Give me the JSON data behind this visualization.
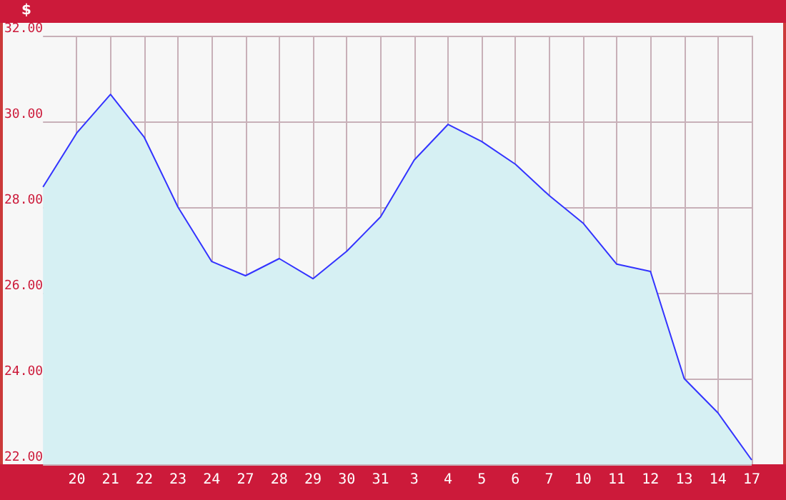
{
  "chart_data": {
    "type": "area",
    "ylabel": "$",
    "categories": [
      null,
      "20",
      "21",
      "22",
      "23",
      "24",
      "27",
      "28",
      "29",
      "30",
      "31",
      "3",
      "4",
      "5",
      "6",
      "7",
      "10",
      "11",
      "12",
      "13",
      "14",
      "17"
    ],
    "series": [
      {
        "color": "#3333ff",
        "values": [
          28.47,
          29.73,
          30.63,
          29.63,
          28.0,
          26.73,
          26.4,
          26.8,
          26.33,
          26.97,
          27.77,
          29.1,
          29.93,
          29.53,
          29.0,
          28.27,
          27.63,
          26.67,
          26.5,
          24.0,
          23.2,
          22.1
        ]
      }
    ],
    "ylim": [
      22,
      32
    ],
    "yticks": [
      {
        "value": 22,
        "label": "22.00"
      },
      {
        "value": 24,
        "label": "24.00"
      },
      {
        "value": 26,
        "label": "26.00"
      },
      {
        "value": 28,
        "label": "28.00"
      },
      {
        "value": 30,
        "label": "30.00"
      },
      {
        "value": 32,
        "label": "32.00"
      }
    ],
    "grid": true,
    "marker": "none",
    "line_style": "solid"
  }
}
